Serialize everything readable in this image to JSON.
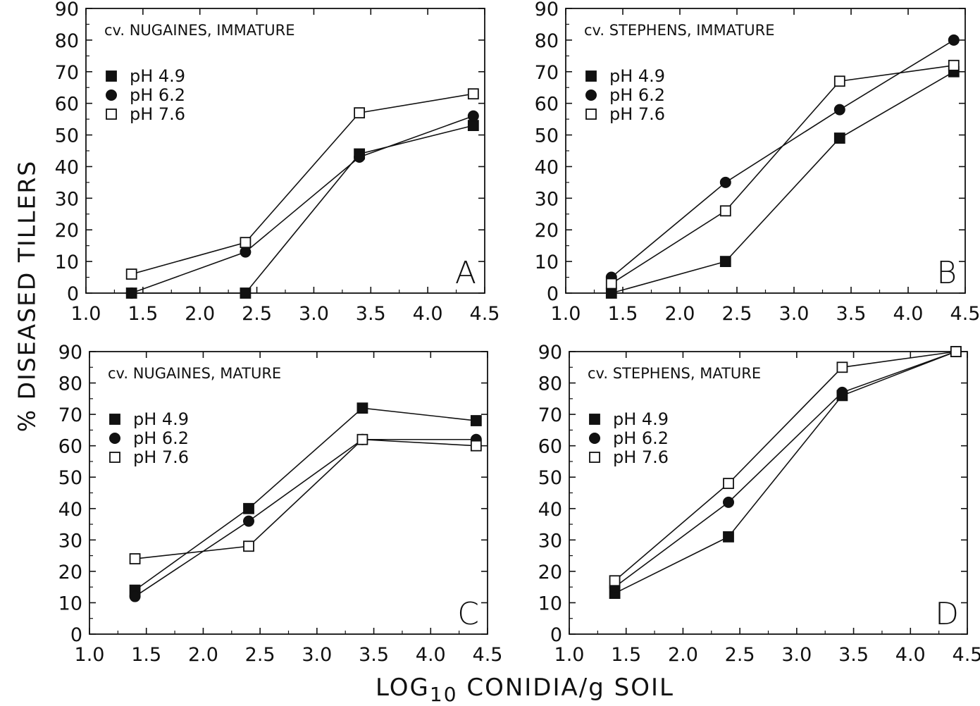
{
  "figure": {
    "ylabel": "% DISEASED TILLERS",
    "xlabel_prefix": "LOG",
    "xlabel_sub": "10",
    "xlabel_suffix": " CONIDIA/g SOIL"
  },
  "chart_data": [
    {
      "type": "line",
      "panel_letter": "A",
      "title": "cv. NUGAINES, IMMATURE",
      "xlabel": "LOG10 CONIDIA/g SOIL",
      "ylabel": "% DISEASED TILLERS",
      "xlim": [
        1.0,
        4.5
      ],
      "ylim": [
        0,
        90
      ],
      "xticks": [
        "1.0",
        "1.5",
        "2.0",
        "2.5",
        "3.0",
        "3.5",
        "4.0",
        "4.5"
      ],
      "yticks": [
        "0",
        "10",
        "20",
        "30",
        "40",
        "50",
        "60",
        "70",
        "80",
        "90"
      ],
      "legend_position": "top-left",
      "grid": false,
      "x": [
        1.4,
        2.4,
        3.4,
        4.4
      ],
      "series": [
        {
          "name": "pH 4.9",
          "marker": "filled-square",
          "values": [
            0,
            0,
            44,
            53
          ]
        },
        {
          "name": "pH 6.2",
          "marker": "filled-circle",
          "values": [
            0,
            13,
            43,
            56
          ]
        },
        {
          "name": "pH 7.6",
          "marker": "open-square",
          "values": [
            6,
            16,
            57,
            63
          ]
        }
      ]
    },
    {
      "type": "line",
      "panel_letter": "B",
      "title": "cv. STEPHENS, IMMATURE",
      "xlabel": "LOG10 CONIDIA/g SOIL",
      "ylabel": "% DISEASED TILLERS",
      "xlim": [
        1.0,
        4.5
      ],
      "ylim": [
        0,
        90
      ],
      "xticks": [
        "1.0",
        "1.5",
        "2.0",
        "2.5",
        "3.0",
        "3.5",
        "4.0",
        "4.5"
      ],
      "yticks": [
        "0",
        "10",
        "20",
        "30",
        "40",
        "50",
        "60",
        "70",
        "80",
        "90"
      ],
      "legend_position": "top-left",
      "grid": false,
      "x": [
        1.4,
        2.4,
        3.4,
        4.4
      ],
      "series": [
        {
          "name": "pH 4.9",
          "marker": "filled-square",
          "values": [
            0,
            10,
            49,
            70
          ]
        },
        {
          "name": "pH 6.2",
          "marker": "filled-circle",
          "values": [
            5,
            35,
            58,
            80
          ]
        },
        {
          "name": "pH 7.6",
          "marker": "open-square",
          "values": [
            3,
            26,
            67,
            72
          ]
        }
      ]
    },
    {
      "type": "line",
      "panel_letter": "C",
      "title": "cv. NUGAINES, MATURE",
      "xlabel": "LOG10 CONIDIA/g SOIL",
      "ylabel": "% DISEASED TILLERS",
      "xlim": [
        1.0,
        4.5
      ],
      "ylim": [
        0,
        90
      ],
      "xticks": [
        "1.0",
        "1.5",
        "2.0",
        "2.5",
        "3.0",
        "3.5",
        "4.0",
        "4.5"
      ],
      "yticks": [
        "0",
        "10",
        "20",
        "30",
        "40",
        "50",
        "60",
        "70",
        "80",
        "90"
      ],
      "legend_position": "top-left",
      "grid": false,
      "x": [
        1.4,
        2.4,
        3.4,
        4.4
      ],
      "series": [
        {
          "name": "pH 4.9",
          "marker": "filled-square",
          "values": [
            14,
            40,
            72,
            68
          ]
        },
        {
          "name": "pH 6.2",
          "marker": "filled-circle",
          "values": [
            12,
            36,
            62,
            62
          ]
        },
        {
          "name": "pH 7.6",
          "marker": "open-square",
          "values": [
            24,
            28,
            62,
            60
          ]
        }
      ]
    },
    {
      "type": "line",
      "panel_letter": "D",
      "title": "cv. STEPHENS, MATURE",
      "xlabel": "LOG10 CONIDIA/g SOIL",
      "ylabel": "% DISEASED TILLERS",
      "xlim": [
        1.0,
        4.5
      ],
      "ylim": [
        0,
        90
      ],
      "xticks": [
        "1.0",
        "1.5",
        "2.0",
        "2.5",
        "3.0",
        "3.5",
        "4.0",
        "4.5"
      ],
      "yticks": [
        "0",
        "10",
        "20",
        "30",
        "40",
        "50",
        "60",
        "70",
        "80",
        "90"
      ],
      "legend_position": "top-left",
      "grid": false,
      "x": [
        1.4,
        2.4,
        3.4,
        4.4
      ],
      "series": [
        {
          "name": "pH 4.9",
          "marker": "filled-square",
          "values": [
            13,
            31,
            76,
            90
          ]
        },
        {
          "name": "pH 6.2",
          "marker": "filled-circle",
          "values": [
            15,
            42,
            77,
            90
          ]
        },
        {
          "name": "pH 7.6",
          "marker": "open-square",
          "values": [
            17,
            48,
            85,
            90
          ]
        }
      ]
    }
  ]
}
